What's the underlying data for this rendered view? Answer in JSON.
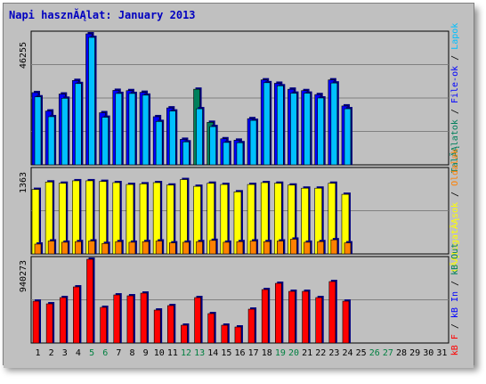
{
  "title": "Napi hasznĂĄlat: January 2013",
  "colors": {
    "background": "#c0c0c0",
    "title": "#0000c0",
    "hits": "#00c0ff",
    "files": "#0000ff",
    "pages": "#00805c",
    "visits": "#ffff00",
    "sites": "#ff8000",
    "kbytes": "#ff0000",
    "weekend_label": "#008040",
    "day_label": "#000000"
  },
  "icons": [],
  "chart_data": [
    {
      "type": "bar",
      "panel": "top",
      "max_label": "46255",
      "ylim": [
        0,
        46255
      ],
      "legend": [
        "Talalatok",
        "File-ok",
        "Lapok"
      ],
      "legend_text": [
        "TalĂĄlatok",
        "/",
        "File-ok",
        "/",
        "Lapok"
      ],
      "categories": [
        "1",
        "2",
        "3",
        "4",
        "5",
        "6",
        "7",
        "8",
        "9",
        "10",
        "11",
        "12",
        "13",
        "14",
        "15",
        "16",
        "17",
        "18",
        "19",
        "20",
        "21",
        "22",
        "23",
        "24",
        "25",
        "26",
        "27",
        "28",
        "29",
        "30",
        "31"
      ],
      "series": [
        {
          "name": "TalĂĄlatok",
          "values": [
            25500,
            19000,
            25000,
            29800,
            46255,
            18400,
            26300,
            26200,
            25600,
            17000,
            20100,
            9000,
            26700,
            15000,
            9200,
            8700,
            16300,
            30000,
            28800,
            26700,
            26200,
            24800,
            30000,
            20800,
            null,
            null,
            null,
            null,
            null,
            null,
            null
          ]
        },
        {
          "name": "File-ok",
          "values": [
            24000,
            17000,
            23500,
            28700,
            45000,
            16800,
            25200,
            25200,
            24600,
            15300,
            19000,
            8100,
            19800,
            13500,
            7900,
            7800,
            15700,
            29000,
            27900,
            25300,
            25300,
            23600,
            28900,
            19800,
            null,
            null,
            null,
            null,
            null,
            null,
            null
          ]
        },
        {
          "name": "Lapok",
          "values": [
            null,
            null,
            null,
            null,
            null,
            null,
            null,
            null,
            null,
            null,
            null,
            null,
            26700,
            15000,
            null,
            null,
            null,
            null,
            null,
            null,
            null,
            null,
            null,
            null,
            null,
            null,
            null,
            null,
            null,
            null,
            null
          ]
        }
      ]
    },
    {
      "type": "bar",
      "panel": "middle",
      "max_label": "1363",
      "ylim": [
        0,
        1363
      ],
      "legend": [
        "Latogatasok",
        "Oldalak"
      ],
      "legend_text": [
        "LĂĄtogatĂĄsok",
        "/",
        "Oldalak"
      ],
      "categories": [
        "1",
        "2",
        "3",
        "4",
        "5",
        "6",
        "7",
        "8",
        "9",
        "10",
        "11",
        "12",
        "13",
        "14",
        "15",
        "16",
        "17",
        "18",
        "19",
        "20",
        "21",
        "22",
        "23",
        "24",
        "25",
        "26",
        "27",
        "28",
        "29",
        "30",
        "31"
      ],
      "series": [
        {
          "name": "LĂĄtogatĂĄsok",
          "values": [
            1050,
            1170,
            1150,
            1190,
            1190,
            1180,
            1160,
            1130,
            1140,
            1160,
            1120,
            1210,
            1100,
            1150,
            1130,
            1010,
            1130,
            1160,
            1150,
            1120,
            1070,
            1070,
            1150,
            970,
            null,
            null,
            null,
            null,
            null,
            null,
            null
          ]
        },
        {
          "name": "Oldalak",
          "values": [
            160,
            210,
            190,
            200,
            210,
            170,
            200,
            190,
            200,
            210,
            180,
            190,
            200,
            220,
            190,
            200,
            210,
            200,
            210,
            240,
            190,
            200,
            230,
            180,
            null,
            null,
            null,
            null,
            null,
            null,
            null
          ]
        }
      ]
    },
    {
      "type": "bar",
      "panel": "bottom",
      "max_label": "940273",
      "ylim": [
        0,
        940273
      ],
      "legend": [
        "kB F",
        "kB In",
        "kB Out"
      ],
      "legend_text": [
        "kB F",
        "/",
        "kB In",
        "/",
        "kB Out"
      ],
      "categories": [
        "1",
        "2",
        "3",
        "4",
        "5",
        "6",
        "7",
        "8",
        "9",
        "10",
        "11",
        "12",
        "13",
        "14",
        "15",
        "16",
        "17",
        "18",
        "19",
        "20",
        "21",
        "22",
        "23",
        "24",
        "25",
        "26",
        "27",
        "28",
        "29",
        "30",
        "31"
      ],
      "weekend_days": [
        "5",
        "6",
        "12",
        "13",
        "19",
        "20",
        "26",
        "27"
      ],
      "series": [
        {
          "name": "kB F",
          "values": [
            470000,
            440000,
            510000,
            630000,
            940273,
            400000,
            540000,
            530000,
            560000,
            370000,
            420000,
            200000,
            510000,
            330000,
            200000,
            180000,
            380000,
            600000,
            670000,
            580000,
            580000,
            510000,
            690000,
            470000,
            null,
            null,
            null,
            null,
            null,
            null,
            null
          ]
        }
      ]
    }
  ]
}
